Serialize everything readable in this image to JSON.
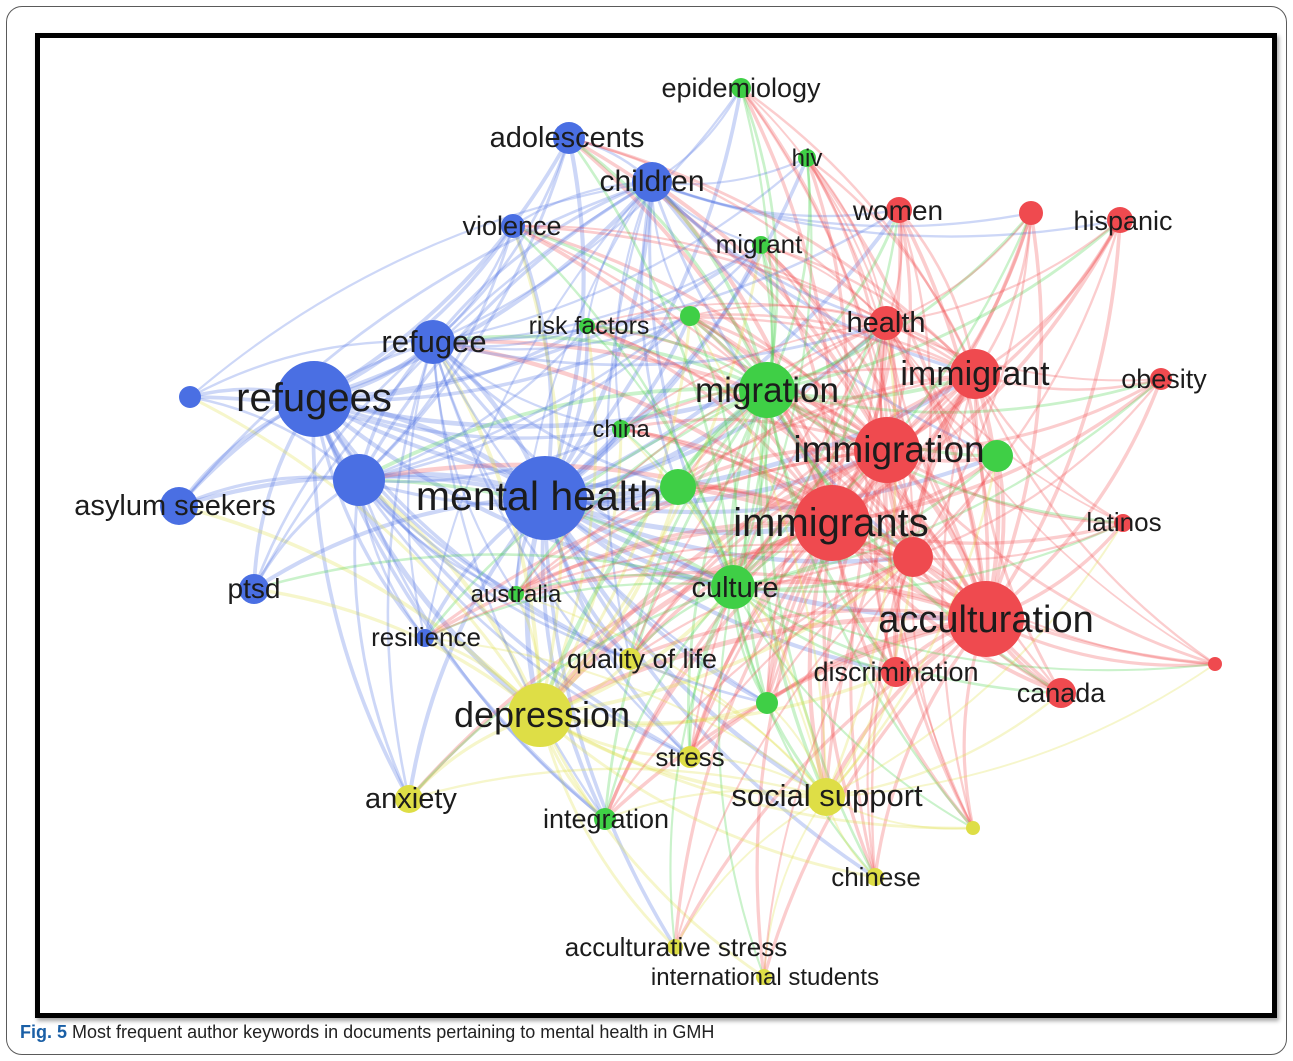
{
  "caption": {
    "label": "Fig. 5",
    "text": "Most frequent author keywords in documents pertaining to mental health in GMH"
  },
  "colors": {
    "blue": "#4a6fe3",
    "green": "#3fcf46",
    "red": "#ef4a4f",
    "yellow": "#dede46"
  },
  "network": {
    "nodes": [
      {
        "id": "epidemiology",
        "cluster": "green"
      },
      {
        "id": "adolescents",
        "cluster": "blue"
      },
      {
        "id": "hiv",
        "cluster": "green"
      },
      {
        "id": "children",
        "cluster": "blue"
      },
      {
        "id": "women",
        "cluster": "red"
      },
      {
        "id": "hispanic",
        "cluster": "red"
      },
      {
        "id": "violence",
        "cluster": "blue"
      },
      {
        "id": "migrant",
        "cluster": "green"
      },
      {
        "id": "refugee",
        "cluster": "blue"
      },
      {
        "id": "risk factors",
        "cluster": "green"
      },
      {
        "id": "health",
        "cluster": "red"
      },
      {
        "id": "refugees",
        "cluster": "blue"
      },
      {
        "id": "migration",
        "cluster": "green"
      },
      {
        "id": "immigrant",
        "cluster": "red"
      },
      {
        "id": "obesity",
        "cluster": "red"
      },
      {
        "id": "china",
        "cluster": "green"
      },
      {
        "id": "immigration",
        "cluster": "red"
      },
      {
        "id": "asylum seekers",
        "cluster": "blue"
      },
      {
        "id": "mental health",
        "cluster": "blue"
      },
      {
        "id": "immigrants",
        "cluster": "red"
      },
      {
        "id": "latinos",
        "cluster": "red"
      },
      {
        "id": "ptsd",
        "cluster": "blue"
      },
      {
        "id": "australia",
        "cluster": "green"
      },
      {
        "id": "culture",
        "cluster": "green"
      },
      {
        "id": "acculturation",
        "cluster": "red"
      },
      {
        "id": "resilience",
        "cluster": "blue"
      },
      {
        "id": "quality of life",
        "cluster": "yellow"
      },
      {
        "id": "discrimination",
        "cluster": "red"
      },
      {
        "id": "canada",
        "cluster": "red"
      },
      {
        "id": "depression",
        "cluster": "yellow"
      },
      {
        "id": "stress",
        "cluster": "yellow"
      },
      {
        "id": "social support",
        "cluster": "yellow"
      },
      {
        "id": "anxiety",
        "cluster": "yellow"
      },
      {
        "id": "integration",
        "cluster": "green"
      },
      {
        "id": "chinese",
        "cluster": "yellow"
      },
      {
        "id": "acculturative stress",
        "cluster": "yellow"
      },
      {
        "id": "international students",
        "cluster": "yellow"
      }
    ]
  }
}
